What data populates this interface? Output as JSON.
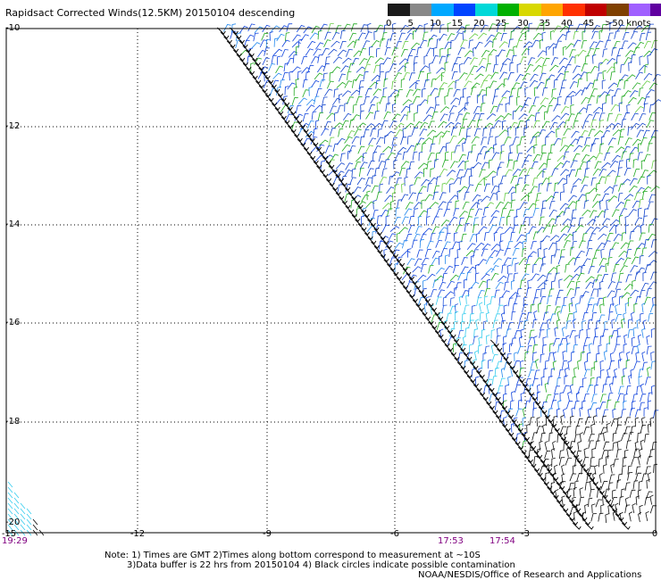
{
  "title": "Rapidsact Corrected Winds(12.5KM) 20150104 descending",
  "legend": {
    "labels": [
      "0",
      "5",
      "10",
      "15",
      "20",
      "25",
      "30",
      "35",
      "40",
      "45",
      ">50 knots"
    ],
    "colors": [
      "#1a1a1a",
      "#888888",
      "#00a8ff",
      "#0044ff",
      "#00d8d8",
      "#00b000",
      "#d8d800",
      "#ffa500",
      "#ff3000",
      "#c00000",
      "#804000",
      "#a060ff",
      "#6000a0",
      "#300060"
    ]
  },
  "axes": {
    "y_labels": [
      "-10",
      "-12",
      "-14",
      "-16",
      "-18",
      "-20"
    ],
    "x_labels": [
      "-15",
      "-12",
      "-9",
      "-6",
      "-3",
      "0"
    ]
  },
  "times": [
    "19:29",
    "17:53",
    "17:54"
  ],
  "notes": {
    "line1": "Note: 1) Times are GMT 2)Times along bottom correspond to measurement at ~10S",
    "line2": "3)Data buffer is 22 hrs from 20150104 4) Black circles indicate possible contamination",
    "line3": "NOAA/NESDIS/Office of Research and Applications"
  }
}
